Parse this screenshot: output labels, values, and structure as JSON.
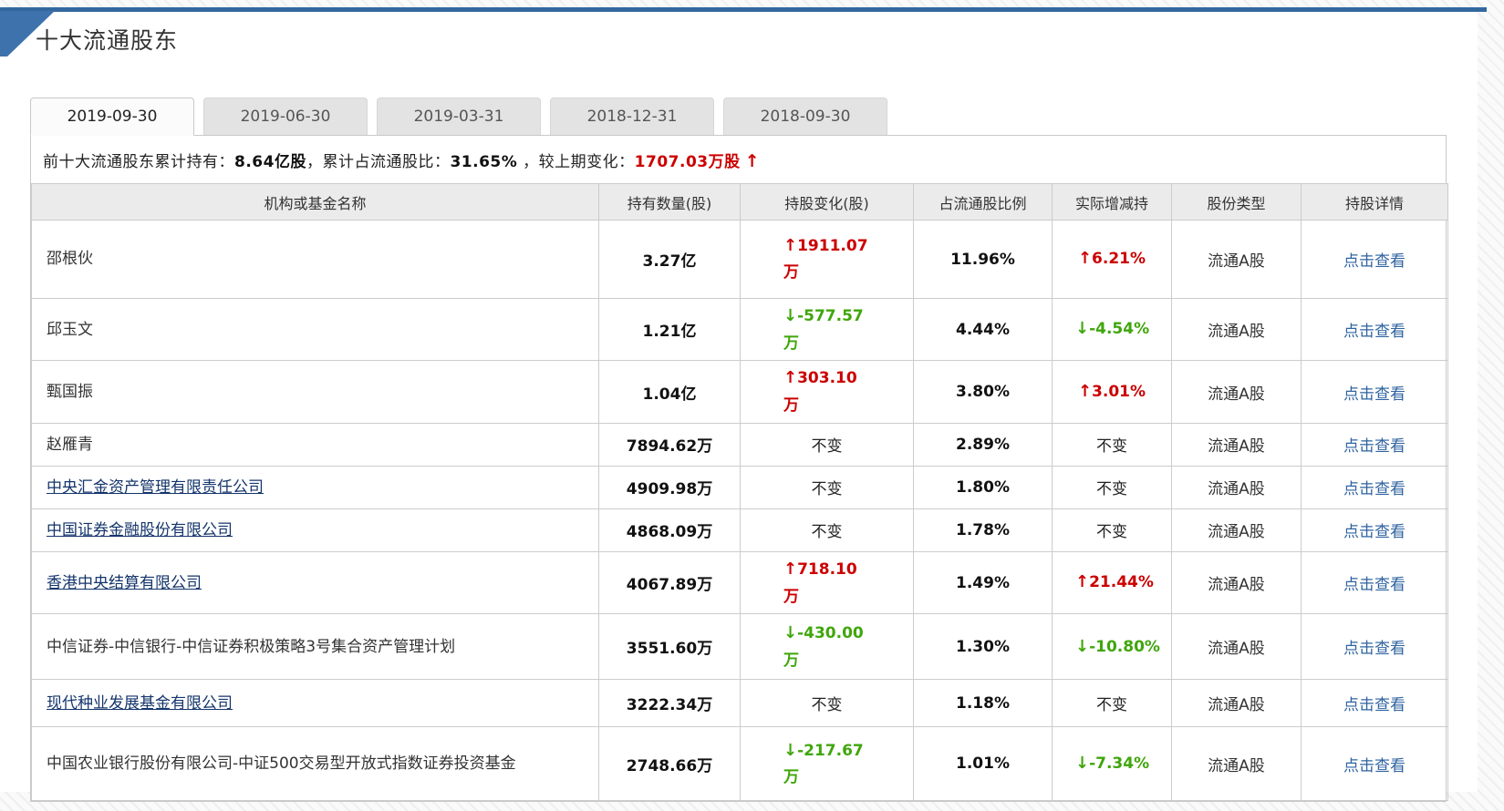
{
  "page": {
    "title": "十大流通股东"
  },
  "tabs": [
    {
      "label": "2019-09-30",
      "active": true
    },
    {
      "label": "2019-06-30",
      "active": false
    },
    {
      "label": "2019-03-31",
      "active": false
    },
    {
      "label": "2018-12-31",
      "active": false
    },
    {
      "label": "2018-09-30",
      "active": false
    }
  ],
  "summary": {
    "prefix": "前十大流通股东累计持有：",
    "holding": "8.64亿股",
    "mid": "，累计占流通股比：",
    "ratio": "31.65%",
    "mid2": " ，较上期变化：",
    "change": "1707.03万股",
    "change_direction": "up"
  },
  "icons": {
    "up_arrow": "↑",
    "down_arrow": "↓"
  },
  "colors": {
    "accent_blue": "#3D72AD",
    "increase_red": "#CC0000",
    "decrease_green": "#3FA60B",
    "name_link_blue": "#14356B",
    "detail_link_blue": "#2F63A0"
  },
  "table": {
    "headers": [
      "机构或基金名称",
      "持有数量(股)",
      "持股变化(股)",
      "占流通股比例",
      "实际增减持",
      "股份类型",
      "持股详情"
    ],
    "rows": [
      {
        "name": "邵根伙",
        "is_link": false,
        "quantity": "3.27亿",
        "change": "1911.07万",
        "change_dir": "up",
        "ratio": "11.96%",
        "delta": "6.21%",
        "delta_dir": "up",
        "share_type": "流通A股",
        "detail": "点击查看"
      },
      {
        "name": "邱玉文",
        "is_link": false,
        "quantity": "1.21亿",
        "change": "-577.57万",
        "change_dir": "down",
        "ratio": "4.44%",
        "delta": "-4.54%",
        "delta_dir": "down",
        "share_type": "流通A股",
        "detail": "点击查看"
      },
      {
        "name": "甄国振",
        "is_link": false,
        "quantity": "1.04亿",
        "change": "303.10万",
        "change_dir": "up",
        "ratio": "3.80%",
        "delta": "3.01%",
        "delta_dir": "up",
        "share_type": "流通A股",
        "detail": "点击查看"
      },
      {
        "name": "赵雁青",
        "is_link": false,
        "quantity": "7894.62万",
        "change": "不变",
        "change_dir": "none",
        "ratio": "2.89%",
        "delta": "不变",
        "delta_dir": "none",
        "share_type": "流通A股",
        "detail": "点击查看"
      },
      {
        "name": "中央汇金资产管理有限责任公司",
        "is_link": true,
        "quantity": "4909.98万",
        "change": "不变",
        "change_dir": "none",
        "ratio": "1.80%",
        "delta": "不变",
        "delta_dir": "none",
        "share_type": "流通A股",
        "detail": "点击查看"
      },
      {
        "name": "中国证券金融股份有限公司",
        "is_link": true,
        "quantity": "4868.09万",
        "change": "不变",
        "change_dir": "none",
        "ratio": "1.78%",
        "delta": "不变",
        "delta_dir": "none",
        "share_type": "流通A股",
        "detail": "点击查看"
      },
      {
        "name": "香港中央结算有限公司",
        "is_link": true,
        "quantity": "4067.89万",
        "change": "718.10万",
        "change_dir": "up",
        "ratio": "1.49%",
        "delta": "21.44%",
        "delta_dir": "up",
        "share_type": "流通A股",
        "detail": "点击查看"
      },
      {
        "name": "中信证券-中信银行-中信证券积极策略3号集合资产管理计划",
        "is_link": false,
        "quantity": "3551.60万",
        "change": "-430.00万",
        "change_dir": "down",
        "ratio": "1.30%",
        "delta": "-10.80%",
        "delta_dir": "down",
        "share_type": "流通A股",
        "detail": "点击查看"
      },
      {
        "name": "现代种业发展基金有限公司",
        "is_link": true,
        "quantity": "3222.34万",
        "change": "不变",
        "change_dir": "none",
        "ratio": "1.18%",
        "delta": "不变",
        "delta_dir": "none",
        "share_type": "流通A股",
        "detail": "点击查看"
      },
      {
        "name": "中国农业银行股份有限公司-中证500交易型开放式指数证券投资基金",
        "is_link": false,
        "quantity": "2748.66万",
        "change": "-217.67万",
        "change_dir": "down",
        "ratio": "1.01%",
        "delta": "-7.34%",
        "delta_dir": "down",
        "share_type": "流通A股",
        "detail": "点击查看"
      }
    ]
  }
}
